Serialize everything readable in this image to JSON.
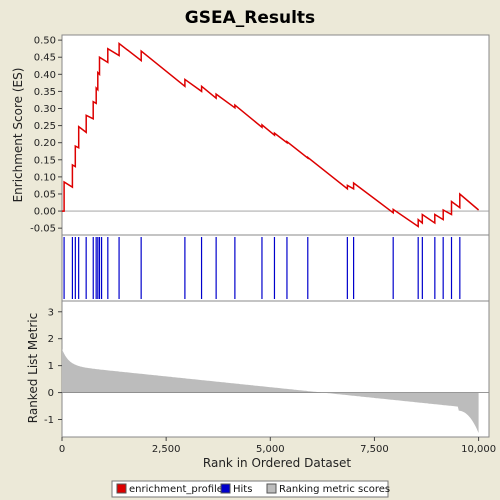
{
  "chart_data": {
    "type": "line",
    "title": "GSEA_Results",
    "xlabel": "Rank in Ordered Dataset",
    "ylabel_top": "Enrichment Score (ES)",
    "ylabel_bottom": "Ranked List Metric",
    "xlim": [
      0,
      10250
    ],
    "x_ticks": [
      0,
      2500,
      5000,
      7500,
      10000
    ],
    "x_tick_labels": [
      "0",
      "2,500",
      "5,000",
      "7,500",
      "10,000"
    ],
    "es_ylim": [
      -0.07,
      0.515
    ],
    "es_ticks": [
      -0.05,
      0.0,
      0.05,
      0.1,
      0.15,
      0.2,
      0.25,
      0.3,
      0.35,
      0.4,
      0.45,
      0.5
    ],
    "es_tick_labels": [
      "-0.05",
      "0.00",
      "0.05",
      "0.10",
      "0.15",
      "0.20",
      "0.25",
      "0.30",
      "0.35",
      "0.40",
      "0.45",
      "0.50"
    ],
    "metric_ylim": [
      -1.65,
      3.4
    ],
    "metric_ticks": [
      -1,
      0,
      1,
      2,
      3
    ],
    "metric_tick_labels": [
      "-1",
      "0",
      "1",
      "2",
      "3"
    ],
    "n_genes": 10000,
    "hits": [
      50,
      250,
      320,
      400,
      580,
      750,
      820,
      860,
      900,
      950,
      1100,
      1370,
      1900,
      2950,
      3350,
      3700,
      4150,
      4800,
      5100,
      5400,
      5900,
      6850,
      7000,
      7950,
      8550,
      8650,
      8950,
      9150,
      9350,
      9550
    ],
    "enrichment_profile": [
      [
        0,
        0.0
      ],
      [
        50,
        0.0
      ],
      [
        50,
        0.085
      ],
      [
        250,
        0.07
      ],
      [
        250,
        0.135
      ],
      [
        320,
        0.13
      ],
      [
        320,
        0.19
      ],
      [
        400,
        0.185
      ],
      [
        400,
        0.247
      ],
      [
        580,
        0.23
      ],
      [
        580,
        0.28
      ],
      [
        750,
        0.27
      ],
      [
        750,
        0.32
      ],
      [
        820,
        0.315
      ],
      [
        820,
        0.36
      ],
      [
        860,
        0.355
      ],
      [
        860,
        0.405
      ],
      [
        900,
        0.4
      ],
      [
        900,
        0.45
      ],
      [
        1100,
        0.435
      ],
      [
        1100,
        0.475
      ],
      [
        1370,
        0.455
      ],
      [
        1370,
        0.49
      ],
      [
        1900,
        0.44
      ],
      [
        1900,
        0.468
      ],
      [
        2950,
        0.365
      ],
      [
        2950,
        0.385
      ],
      [
        3350,
        0.35
      ],
      [
        3350,
        0.365
      ],
      [
        3700,
        0.33
      ],
      [
        3700,
        0.342
      ],
      [
        4150,
        0.302
      ],
      [
        4150,
        0.31
      ],
      [
        4800,
        0.245
      ],
      [
        4800,
        0.252
      ],
      [
        5100,
        0.222
      ],
      [
        5100,
        0.228
      ],
      [
        5400,
        0.2
      ],
      [
        5400,
        0.203
      ],
      [
        5900,
        0.155
      ],
      [
        5900,
        0.157
      ],
      [
        6850,
        0.065
      ],
      [
        6850,
        0.075
      ],
      [
        7000,
        0.065
      ],
      [
        7000,
        0.082
      ],
      [
        7950,
        -0.005
      ],
      [
        7950,
        0.005
      ],
      [
        8550,
        -0.045
      ],
      [
        8550,
        -0.025
      ],
      [
        8650,
        -0.035
      ],
      [
        8650,
        -0.01
      ],
      [
        8950,
        -0.035
      ],
      [
        8950,
        -0.01
      ],
      [
        9150,
        -0.025
      ],
      [
        9150,
        0.003
      ],
      [
        9350,
        -0.01
      ],
      [
        9350,
        0.028
      ],
      [
        9550,
        0.01
      ],
      [
        9550,
        0.05
      ],
      [
        10000,
        0.003
      ]
    ],
    "metric_shape": {
      "start": 1.62,
      "head_drop": 0.62,
      "head_decay": 160,
      "mid_start": 0.85,
      "mid_slope": 1.6,
      "tail_end": -1.5,
      "tail_len": 500
    },
    "legend": [
      "enrichment_profile",
      "Hits",
      "Ranking metric scores"
    ],
    "legend_placement": "bottom",
    "colors": {
      "profile": "#dd0000",
      "hits": "#0000cc",
      "metric": "#bcbcbc",
      "zero_line": "#999999",
      "panel_bg": "#ffffff",
      "page_bg": "#ece9d8"
    }
  }
}
